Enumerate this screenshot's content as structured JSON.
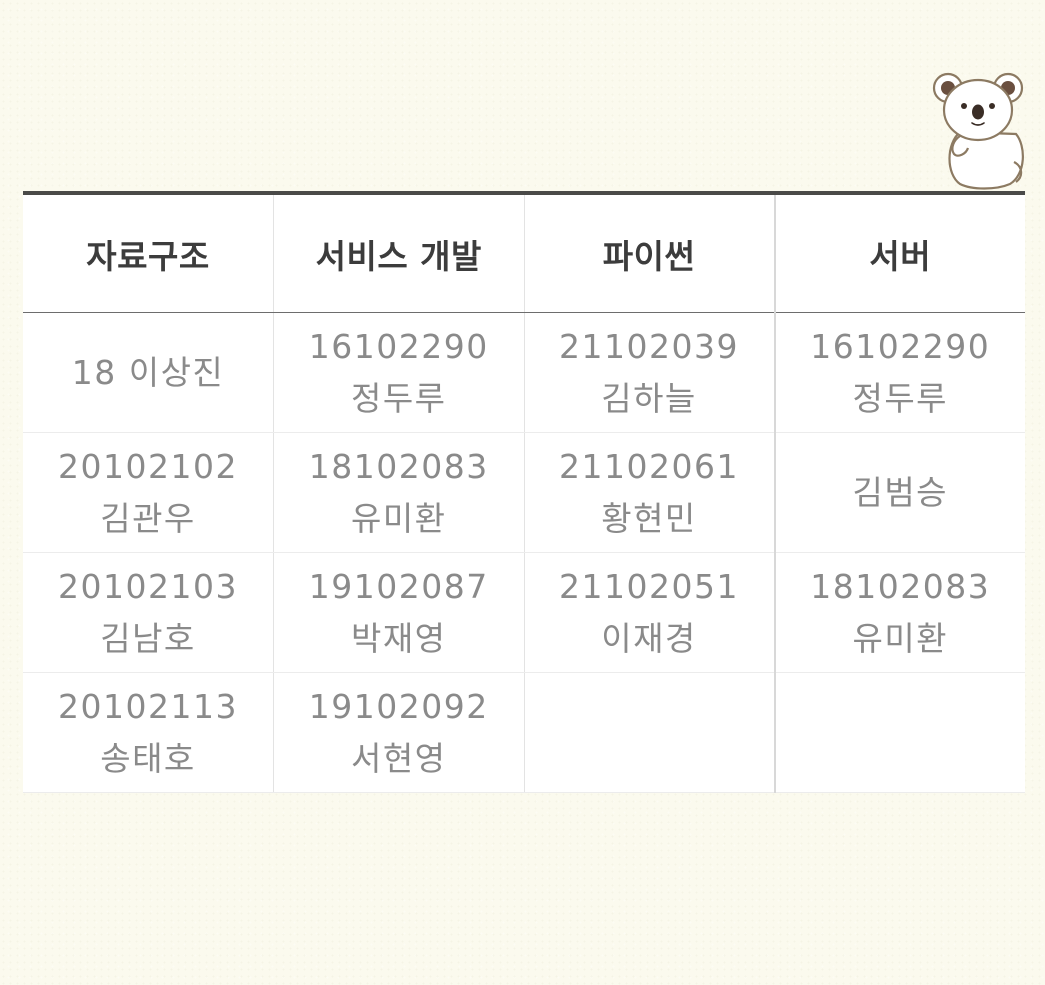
{
  "table": {
    "headers": [
      "자료구조",
      "서비스 개발",
      "파이썬",
      "서버"
    ],
    "rows": [
      [
        {
          "id": "18",
          "name": "이상진"
        },
        {
          "id": "16102290",
          "name": "정두루"
        },
        {
          "id": "21102039",
          "name": "김하늘"
        },
        {
          "id": "16102290",
          "name": "정두루"
        }
      ],
      [
        {
          "id": "20102102",
          "name": "김관우"
        },
        {
          "id": "18102083",
          "name": "유미환"
        },
        {
          "id": "21102061",
          "name": "황현민"
        },
        {
          "id": "",
          "name": "김범승"
        }
      ],
      [
        {
          "id": "20102103",
          "name": "김남호"
        },
        {
          "id": "19102087",
          "name": "박재영"
        },
        {
          "id": "21102051",
          "name": "이재경"
        },
        {
          "id": "18102083",
          "name": "유미환"
        }
      ],
      [
        {
          "id": "20102113",
          "name": "송태호"
        },
        {
          "id": "19102092",
          "name": "서현영"
        },
        {
          "id": "",
          "name": ""
        },
        {
          "id": "",
          "name": ""
        }
      ]
    ]
  },
  "decoration": {
    "icon": "koala-icon"
  }
}
